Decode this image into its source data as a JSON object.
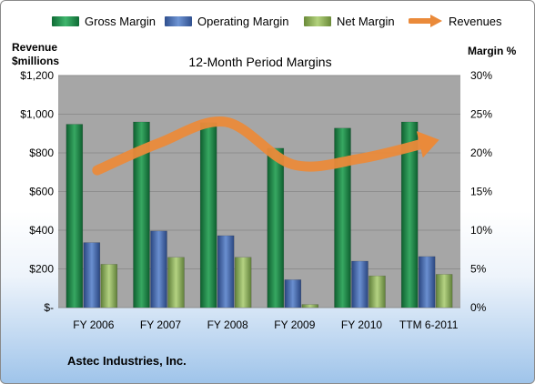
{
  "chart_data": {
    "type": "bar",
    "title": "12-Month Period Margins",
    "categories": [
      "FY 2006",
      "FY 2007",
      "FY 2008",
      "FY 2009",
      "FY 2010",
      "TTM 6-2011"
    ],
    "series": [
      {
        "name": "Gross Margin",
        "axis": "right",
        "unit": "%",
        "values": [
          23.7,
          24.0,
          23.9,
          20.6,
          23.2,
          24.0
        ]
      },
      {
        "name": "Operating Margin",
        "axis": "right",
        "unit": "%",
        "values": [
          8.4,
          9.9,
          9.3,
          3.6,
          6.0,
          6.6
        ]
      },
      {
        "name": "Net Margin",
        "axis": "right",
        "unit": "%",
        "values": [
          5.6,
          6.5,
          6.5,
          0.4,
          4.1,
          4.3
        ]
      },
      {
        "name": "Revenues",
        "type": "line",
        "axis": "left",
        "unit": "$ millions",
        "values": [
          710,
          850,
          960,
          740,
          770,
          850
        ]
      }
    ],
    "ylabel_left": "Revenue $millions",
    "ylabel_right": "Margin %",
    "ylim_left": [
      0,
      1200
    ],
    "ylim_right": [
      0,
      30
    ],
    "yticks_left": [
      "$-",
      "$200",
      "$400",
      "$600",
      "$800",
      "$1,000",
      "$1,200"
    ],
    "yticks_right": [
      "0%",
      "5%",
      "10%",
      "15%",
      "20%",
      "25%",
      "30%"
    ],
    "grid": true,
    "legend_position": "top",
    "colors": {
      "gross_margin": "#1f8a4c",
      "operating_margin": "#4a6fb0",
      "net_margin": "#8fb05a",
      "revenues": "#ea8a3a",
      "plot_background": "#a6a6a6"
    }
  },
  "legend": {
    "gross_label": "Gross Margin",
    "operating_label": "Operating Margin",
    "net_label": "Net Margin",
    "revenues_label": "Revenues"
  },
  "axis_titles": {
    "left_line1": "Revenue",
    "left_line2": "$millions",
    "right": "Margin %"
  },
  "footer": {
    "company": "Astec Industries, Inc."
  }
}
